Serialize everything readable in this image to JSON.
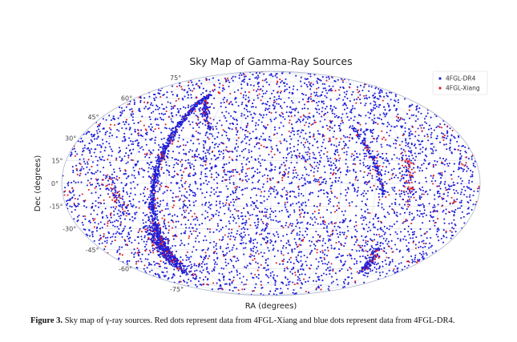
{
  "chart_data": {
    "type": "scatter",
    "projection": "mollweide",
    "title": "Sky Map of Gamma-Ray Sources",
    "xlabel": "RA (degrees)",
    "ylabel": "Dec (degrees)",
    "ylim": [
      -90,
      90
    ],
    "dec_ticks": [
      75,
      60,
      45,
      30,
      15,
      0,
      -15,
      -30,
      -45,
      -60,
      -75
    ],
    "dec_tick_labels": [
      "75°",
      "60°",
      "45°",
      "30°",
      "15°",
      "0°",
      "-15°",
      "-30°",
      "-45°",
      "-60°",
      "-75°"
    ],
    "grid": true,
    "legend_position": "top-right",
    "series": [
      {
        "name": "4FGL-DR4",
        "color": "#1f1fd8",
        "marker": "dot"
      },
      {
        "name": "4FGL-Xiang",
        "color": "#e0202a",
        "marker": "dot"
      }
    ],
    "colors": {
      "outline": "#aab4cc",
      "grid": "#d2d7e2"
    }
  },
  "caption": {
    "label": "Figure 3.",
    "text": " Sky map of γ-ray sources. Red dots represent data from 4FGL-Xiang and blue dots represent data from 4FGL-DR4."
  }
}
